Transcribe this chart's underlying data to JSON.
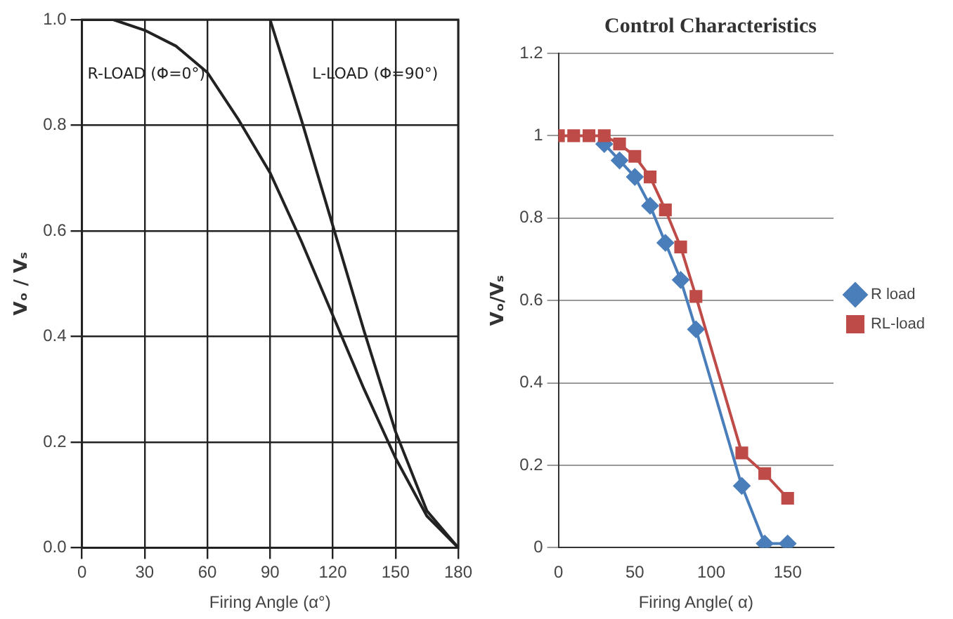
{
  "chart_data": [
    {
      "type": "line",
      "xlabel": "Firing Angle (α°)",
      "ylabel": "Vₒ / Vₛ",
      "xlim": [
        0,
        180
      ],
      "xticks": [
        0,
        30,
        60,
        90,
        120,
        150,
        180
      ],
      "ylim": [
        0,
        1
      ],
      "yticks": [
        {
          "value": 0,
          "label": "0.0"
        },
        {
          "value": 0.2,
          "label": "0.2"
        },
        {
          "value": 0.4,
          "label": "0.4"
        },
        {
          "value": 0.6,
          "label": "0.6"
        },
        {
          "value": 0.8,
          "label": "0.8"
        },
        {
          "value": 1,
          "label": "1.0"
        }
      ],
      "grid": true,
      "legend": false,
      "marker": "none",
      "line_style": "solid",
      "series": [
        {
          "name": "R-LOAD (Φ=0°)",
          "color": "#222222",
          "x": [
            0,
            15,
            30,
            45,
            60,
            75,
            90,
            105,
            120,
            135,
            150,
            165,
            180
          ],
          "values": [
            1,
            1,
            0.98,
            0.95,
            0.9,
            0.81,
            0.71,
            0.58,
            0.44,
            0.3,
            0.17,
            0.06,
            0
          ]
        },
        {
          "name": "L-LOAD (Φ=90°)",
          "color": "#222222",
          "x": [
            90,
            105,
            120,
            135,
            150,
            165,
            180
          ],
          "values": [
            1,
            0.81,
            0.61,
            0.41,
            0.22,
            0.07,
            0
          ]
        }
      ]
    },
    {
      "type": "line",
      "title": "Control Characteristics",
      "xlabel": "Firing Angle( α)",
      "ylabel": "Vₒ/Vₛ",
      "xlim": [
        0,
        180
      ],
      "xticks": [
        0,
        50,
        100,
        150
      ],
      "ylim": [
        0,
        1.2
      ],
      "yticks": [
        0,
        0.2,
        0.4,
        0.6,
        0.8,
        1,
        1.2
      ],
      "grid": "y",
      "legend": "right",
      "line_style": "solid",
      "series": [
        {
          "name": "R load",
          "color": "#4a7ebb",
          "marker": "diamond",
          "x": [
            30,
            40,
            50,
            60,
            70,
            80,
            90,
            120,
            135,
            150
          ],
          "values": [
            0.98,
            0.94,
            0.9,
            0.83,
            0.74,
            0.65,
            0.53,
            0.15,
            0.01,
            0.01
          ]
        },
        {
          "name": "RL-load",
          "color": "#be4b48",
          "marker": "square",
          "x": [
            0,
            10,
            20,
            30,
            40,
            50,
            60,
            70,
            80,
            90,
            120,
            135,
            150
          ],
          "values": [
            1,
            1,
            1,
            1,
            0.98,
            0.95,
            0.9,
            0.82,
            0.73,
            0.61,
            0.23,
            0.18,
            0.12
          ]
        }
      ]
    }
  ]
}
